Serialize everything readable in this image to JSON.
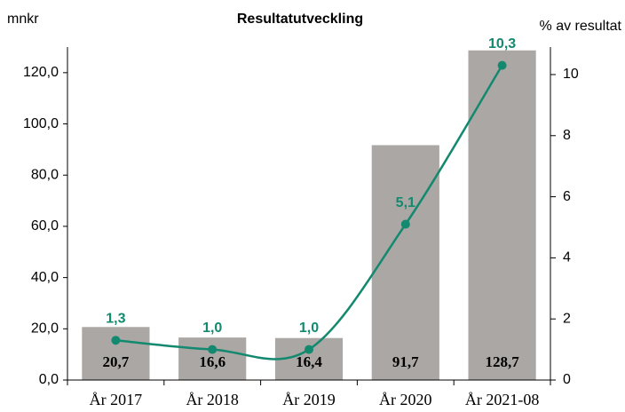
{
  "chart_data": {
    "type": "bar",
    "title": "Resultatutveckling",
    "y_label": "mnkr",
    "y2_label": "% av resultat",
    "categories": [
      "År 2017",
      "År 2018",
      "År 2019",
      "År 2020",
      "År 2021-08"
    ],
    "series": [
      {
        "type": "bar",
        "color": "#aba7a4",
        "values": [
          20.7,
          16.6,
          16.4,
          91.7,
          128.7
        ],
        "value_labels": [
          "20,7",
          "16,6",
          "16,4",
          "91,7",
          "128,7"
        ]
      },
      {
        "type": "line",
        "axis": "y2",
        "color": "#13896f",
        "values": [
          1.3,
          1.0,
          1.0,
          5.1,
          10.3
        ],
        "value_labels": [
          "1,3",
          "1,0",
          "1,0",
          "5,1",
          "10,3"
        ]
      }
    ],
    "ylim": [
      0,
      130
    ],
    "yticks": [
      {
        "value": 0,
        "label": "0,0"
      },
      {
        "value": 20,
        "label": "20,0"
      },
      {
        "value": 40,
        "label": "40,0"
      },
      {
        "value": 60,
        "label": "60,0"
      },
      {
        "value": 80,
        "label": "80,0"
      },
      {
        "value": 100,
        "label": "100,0"
      },
      {
        "value": 120,
        "label": "120,0"
      }
    ],
    "y2lim": [
      0,
      10.9
    ],
    "y2ticks": [
      0,
      2,
      4,
      6,
      8,
      10
    ]
  }
}
